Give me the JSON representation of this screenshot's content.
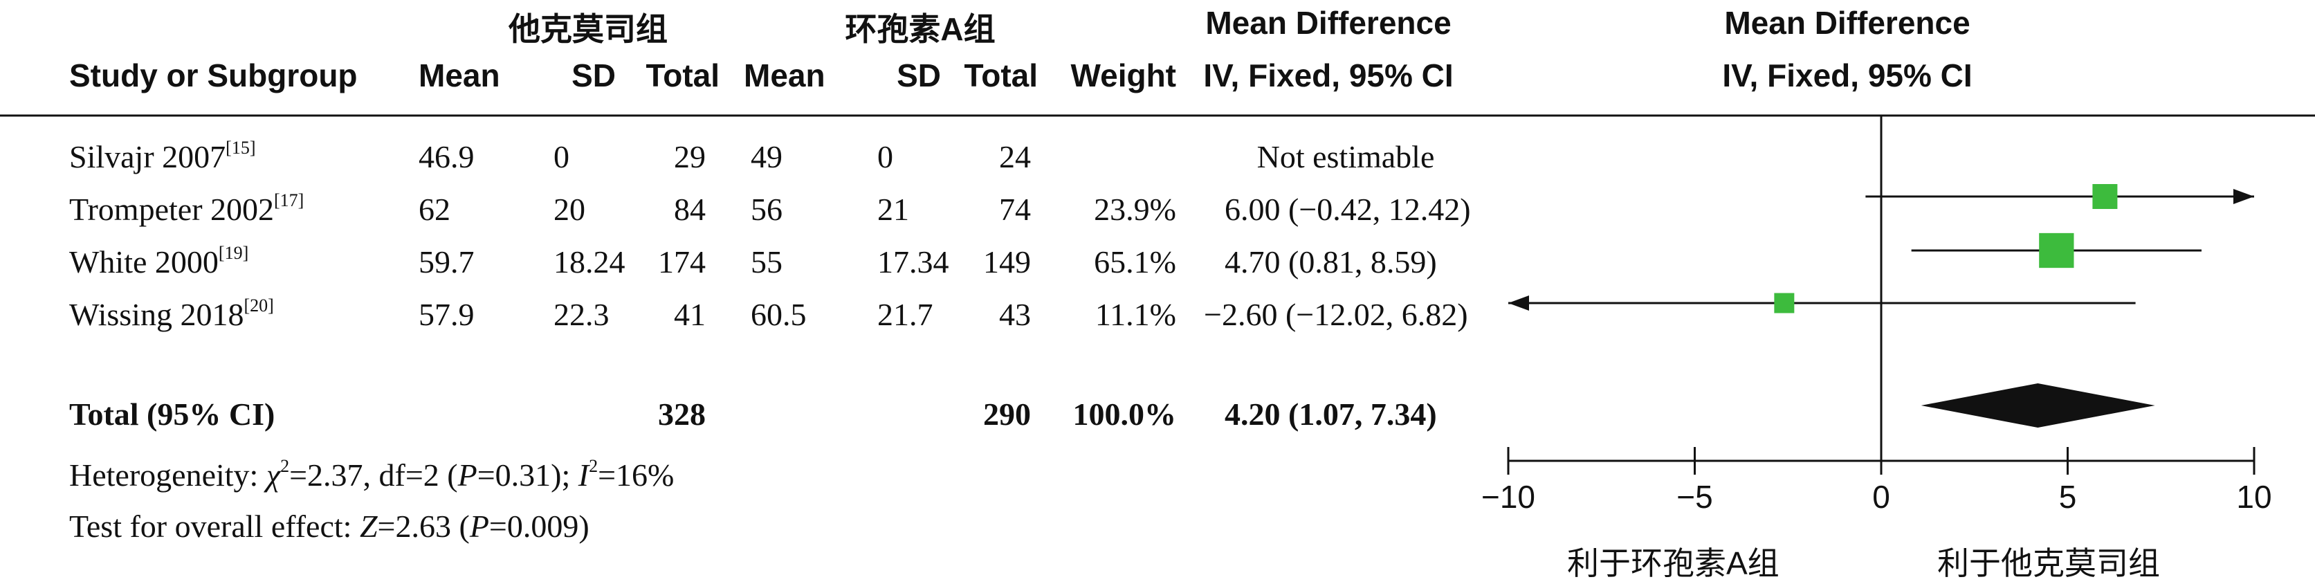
{
  "groups": {
    "exp": "他克莫司组",
    "ctrl": "环孢素A组"
  },
  "headers": {
    "study": "Study or Subgroup",
    "mean1": "Mean",
    "sd1": "SD",
    "total1": "Total",
    "mean2": "Mean",
    "sd2": "SD",
    "total2": "Total",
    "weight": "Weight",
    "md_title": "Mean Difference",
    "md_method": "IV, Fixed, 95% CI",
    "plot_title": "Mean Difference",
    "plot_method": "IV, Fixed, 95% CI"
  },
  "studies": [
    {
      "name": "Silvajr 2007",
      "ref": "[15]",
      "mean1": "46.9",
      "sd1": "0",
      "total1": "29",
      "mean2": "49",
      "sd2": "0",
      "total2": "24",
      "weight": "",
      "ci_text": "Not estimable"
    },
    {
      "name": "Trompeter 2002",
      "ref": "[17]",
      "mean1": "62",
      "sd1": "20",
      "total1": "84",
      "mean2": "56",
      "sd2": "21",
      "total2": "74",
      "weight": "23.9%",
      "ci_text": "6.00 (−0.42, 12.42)"
    },
    {
      "name": "White 2000",
      "ref": "[19]",
      "mean1": "59.7",
      "sd1": "18.24",
      "total1": "174",
      "mean2": "55",
      "sd2": "17.34",
      "total2": "149",
      "weight": "65.1%",
      "ci_text": "4.70 (0.81, 8.59)"
    },
    {
      "name": "Wissing 2018",
      "ref": "[20]",
      "mean1": "57.9",
      "sd1": "22.3",
      "total1": "41",
      "mean2": "60.5",
      "sd2": "21.7",
      "total2": "43",
      "weight": "11.1%",
      "ci_text": "−2.60 (−12.02, 6.82)"
    }
  ],
  "total": {
    "label": "Total (95% CI)",
    "total1": "328",
    "total2": "290",
    "weight": "100.0%",
    "ci_text": "4.20 (1.07, 7.34)"
  },
  "heterogeneity": {
    "prefix": "Heterogeneity: ",
    "chi": "χ",
    "chi_sup": "2",
    "chi_val": "=2.37, df=2 (",
    "p": "P",
    "p_val": "=0.31); ",
    "i": "I",
    "i_sup": "2",
    "i_val": "=16%"
  },
  "overall": {
    "prefix": "Test for overall effect: ",
    "z": "Z",
    "z_val": "=2.63 (",
    "p": "P",
    "p_val": "=0.009)"
  },
  "favours": {
    "left": "利于环孢素A组",
    "right": "利于他克莫司组"
  },
  "colors": {
    "marker": "#3dbb3d",
    "diamond": "#111111",
    "line": "#111111"
  },
  "chart_data": {
    "type": "forest",
    "xlim": [
      -10,
      10
    ],
    "ticks": [
      -10,
      -5,
      0,
      5,
      10
    ],
    "tick_labels": [
      "−10",
      "−5",
      "0",
      "5",
      "10"
    ],
    "studies": [
      {
        "name": "Silvajr 2007",
        "estimate": null,
        "lower": null,
        "upper": null,
        "weight": null
      },
      {
        "name": "Trompeter 2002",
        "estimate": 6.0,
        "lower": -0.42,
        "upper": 12.42,
        "weight": 23.9
      },
      {
        "name": "White 2000",
        "estimate": 4.7,
        "lower": 0.81,
        "upper": 8.59,
        "weight": 65.1
      },
      {
        "name": "Wissing 2018",
        "estimate": -2.6,
        "lower": -12.02,
        "upper": 6.82,
        "weight": 11.1
      }
    ],
    "pooled": {
      "estimate": 4.2,
      "lower": 1.07,
      "upper": 7.34
    }
  }
}
